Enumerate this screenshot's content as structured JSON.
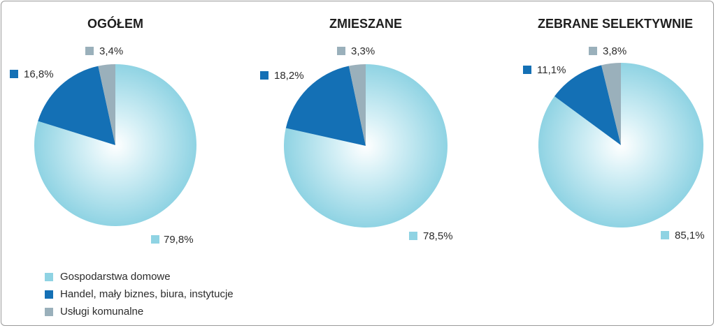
{
  "colors": {
    "households": "#8fd3e3",
    "business": "#1470b5",
    "municipal": "#9ab0bb"
  },
  "legend": [
    {
      "label": "Gospodarstwa domowe",
      "color_key": "households"
    },
    {
      "label": "Handel, mały biznes, biura, instytucje",
      "color_key": "business"
    },
    {
      "label": "Usługi komunalne",
      "color_key": "municipal"
    }
  ],
  "chart_data": [
    {
      "type": "pie",
      "title": "OGÓŁEM",
      "slices": [
        {
          "series": "Gospodarstwa domowe",
          "value": 79.8,
          "label": "79,8%"
        },
        {
          "series": "Handel, mały biznes, biura, instytucje",
          "value": 16.8,
          "label": "16,8%"
        },
        {
          "series": "Usługi komunalne",
          "value": 3.4,
          "label": "3,4%"
        }
      ]
    },
    {
      "type": "pie",
      "title": "ZMIESZANE",
      "slices": [
        {
          "series": "Gospodarstwa domowe",
          "value": 78.5,
          "label": "78,5%"
        },
        {
          "series": "Handel, mały biznes, biura, instytucje",
          "value": 18.2,
          "label": "18,2%"
        },
        {
          "series": "Usługi komunalne",
          "value": 3.3,
          "label": "3,3%"
        }
      ]
    },
    {
      "type": "pie",
      "title": "ZEBRANE SELEKTYWNIE",
      "slices": [
        {
          "series": "Gospodarstwa domowe",
          "value": 85.1,
          "label": "85,1%"
        },
        {
          "series": "Handel, mały biznes, biura, instytucje",
          "value": 11.1,
          "label": "11,1%"
        },
        {
          "series": "Usługi komunalne",
          "value": 3.8,
          "label": "3,8%"
        }
      ]
    }
  ]
}
